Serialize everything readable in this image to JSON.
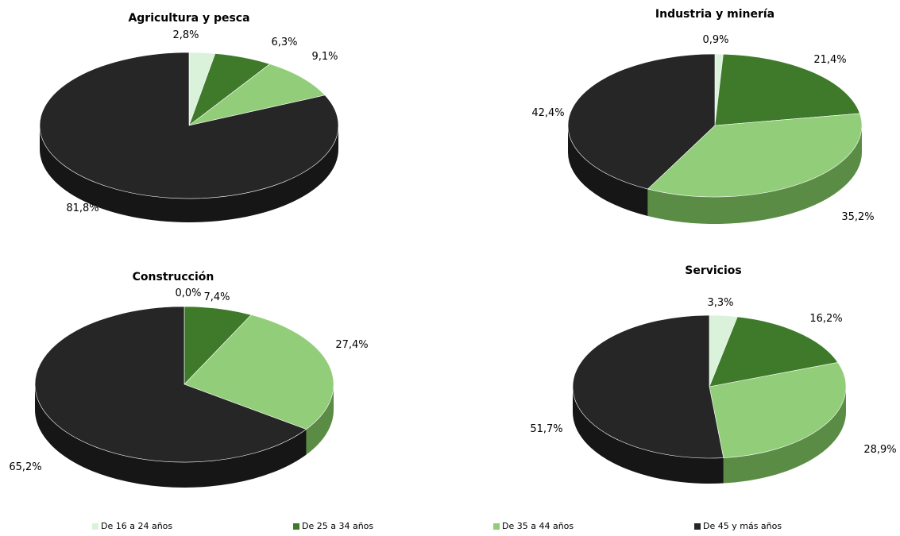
{
  "chart_data": [
    {
      "type": "pie",
      "title": "Agricultura y pesca",
      "categories": [
        "De 16 a 24 años",
        "De 25 a 34 años",
        "De 35 a 44 años",
        "De 45 y más años"
      ],
      "values": [
        2.8,
        6.3,
        9.1,
        81.8
      ],
      "labels": [
        "2,8%",
        "6,3%",
        "9,1%",
        "81,8%"
      ]
    },
    {
      "type": "pie",
      "title": "Industria y minería",
      "categories": [
        "De 16 a 24 años",
        "De 25 a 34 años",
        "De 35 a 44 años",
        "De 45 y más años"
      ],
      "values": [
        0.9,
        21.4,
        35.2,
        42.4
      ],
      "labels": [
        "0,9%",
        "21,4%",
        "35,2%",
        "42,4%"
      ]
    },
    {
      "type": "pie",
      "title": "Construcción",
      "categories": [
        "De 16 a 24 años",
        "De 25 a 34 años",
        "De 35 a 44 años",
        "De 45 y más años"
      ],
      "values": [
        0.0,
        7.4,
        27.4,
        65.2
      ],
      "labels": [
        "0,0%",
        "7,4%",
        "27,4%",
        "65,2%"
      ]
    },
    {
      "type": "pie",
      "title": "Servicios",
      "categories": [
        "De 16 a 24 años",
        "De 25 a 34 años",
        "De 35 a 44 años",
        "De 45 y más años"
      ],
      "values": [
        3.3,
        16.2,
        28.9,
        51.7
      ],
      "labels": [
        "3,3%",
        "16,2%",
        "28,9%",
        "51,7%"
      ]
    }
  ],
  "legend": [
    {
      "label": "De 16 a 24 años",
      "color": "#d9f2d9"
    },
    {
      "label": "De 25 a 34 años",
      "color": "#3e7a2a"
    },
    {
      "label": "De 35 a 44 años",
      "color": "#92cd7a"
    },
    {
      "label": "De 45 y más años",
      "color": "#262626"
    }
  ],
  "colors": {
    "top": [
      "#d9f2d9",
      "#3e7a2a",
      "#92cd7a",
      "#262626"
    ],
    "side": [
      "#a9c2a9",
      "#2c5a1d",
      "#5b8c46",
      "#161616"
    ]
  }
}
